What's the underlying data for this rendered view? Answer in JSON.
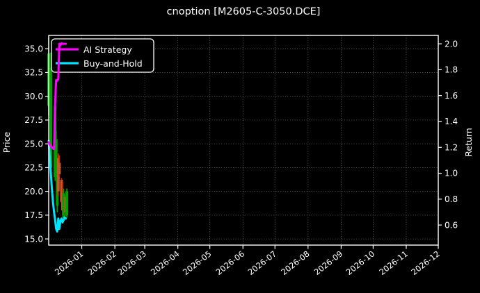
{
  "title": "cnoption [M2605-C-3050.DCE]",
  "legend": {
    "items": [
      {
        "label": "AI Strategy",
        "color": "#ff00ff"
      },
      {
        "label": "Buy-and-Hold",
        "color": "#00e5ff"
      }
    ]
  },
  "axes": {
    "left": {
      "label": "Price",
      "ticks": [
        "35.0",
        "32.5",
        "30.0",
        "27.5",
        "25.0",
        "22.5",
        "20.0",
        "17.5",
        "15.0"
      ]
    },
    "right": {
      "label": "Return",
      "ticks": [
        "2.0",
        "1.8",
        "1.6",
        "1.4",
        "1.2",
        "1.0",
        "0.8",
        "0.6"
      ]
    },
    "x": {
      "ticks": [
        "2026-01",
        "2026-02",
        "2026-03",
        "2026-04",
        "2026-05",
        "2026-06",
        "2026-07",
        "2026-08",
        "2026-09",
        "2026-10",
        "2026-11",
        "2026-12"
      ]
    }
  },
  "chart_data": {
    "type": "line",
    "title": "cnoption [M2605-C-3050.DCE]",
    "x_start_date": "2025-12-01",
    "x_axis_range": [
      "2025-12-01",
      "2026-12-01"
    ],
    "grid": "dotted",
    "legend_position": "upper left",
    "background": "#000000",
    "left_axis": {
      "label": "Price",
      "ylim": [
        14.35,
        36.4
      ],
      "tick_values": [
        35.0,
        32.5,
        30.0,
        27.5,
        25.0,
        22.5,
        20.0,
        17.5,
        15.0
      ]
    },
    "right_axis": {
      "label": "Return",
      "ylim": [
        0.445,
        2.065
      ],
      "tick_values": [
        2.0,
        1.8,
        1.6,
        1.4,
        1.2,
        1.0,
        0.8,
        0.6
      ]
    },
    "series": [
      {
        "name": "AI Strategy",
        "axis": "return",
        "color": "#ff00ff",
        "linewidth": 3,
        "dates": [
          "2025-12-01",
          "2025-12-02",
          "2025-12-03",
          "2025-12-04",
          "2025-12-05",
          "2025-12-06",
          "2025-12-07",
          "2025-12-08",
          "2025-12-09",
          "2025-12-10",
          "2025-12-11",
          "2025-12-12",
          "2025-12-13",
          "2025-12-14",
          "2025-12-15",
          "2025-12-16",
          "2025-12-17"
        ],
        "values": [
          1.24,
          1.22,
          1.21,
          1.2,
          1.19,
          1.185,
          1.53,
          1.72,
          1.715,
          1.73,
          2.0,
          1.99,
          2.005,
          2.0,
          2.0,
          2.0,
          2.0
        ]
      },
      {
        "name": "Buy-and-Hold",
        "axis": "return",
        "color": "#00e5ff",
        "linewidth": 3,
        "dates": [
          "2025-12-01",
          "2025-12-02",
          "2025-12-03",
          "2025-12-04",
          "2025-12-05",
          "2025-12-06",
          "2025-12-07",
          "2025-12-08",
          "2025-12-09",
          "2025-12-10",
          "2025-12-11",
          "2025-12-12",
          "2025-12-13",
          "2025-12-14",
          "2025-12-15",
          "2025-12-16",
          "2025-12-17"
        ],
        "values": [
          1.25,
          1.13,
          1.0,
          0.88,
          0.78,
          0.7,
          0.64,
          0.57,
          0.55,
          0.65,
          0.57,
          0.63,
          0.65,
          0.62,
          0.64,
          0.66,
          0.65
        ]
      }
    ],
    "candles": {
      "axis": "price",
      "up_color": "#00a000",
      "down_color": "#dd2200",
      "down_body_color": "#c4572b",
      "up_body_color": "#00a000",
      "data": [
        {
          "date": "2025-12-01",
          "open": 29.0,
          "high": 36.2,
          "low": 28.0,
          "close": 34.5
        },
        {
          "date": "2025-12-03",
          "open": 22.5,
          "high": 34.6,
          "low": 21.5,
          "close": 33.0
        },
        {
          "date": "2025-12-07",
          "open": 21.5,
          "high": 30.1,
          "low": 21.1,
          "close": 29.0
        },
        {
          "date": "2025-12-08",
          "open": 22.0,
          "high": 26.3,
          "low": 21.5,
          "close": 25.5
        },
        {
          "date": "2025-12-09",
          "open": 18.5,
          "high": 23.5,
          "low": 17.8,
          "close": 22.5
        },
        {
          "date": "2025-12-10",
          "open": 23.5,
          "high": 24.0,
          "low": 19.5,
          "close": 20.0
        },
        {
          "date": "2025-12-11",
          "open": 23.0,
          "high": 23.8,
          "low": 21.5,
          "close": 21.8
        },
        {
          "date": "2025-12-13",
          "open": 21.2,
          "high": 21.4,
          "low": 18.8,
          "close": 18.9
        },
        {
          "date": "2025-12-14",
          "open": 19.0,
          "high": 21.0,
          "low": 17.5,
          "close": 18.0
        },
        {
          "date": "2025-12-15",
          "open": 17.2,
          "high": 20.3,
          "low": 16.9,
          "close": 19.8
        },
        {
          "date": "2025-12-17",
          "open": 19.4,
          "high": 19.6,
          "low": 17.4,
          "close": 17.8
        },
        {
          "date": "2025-12-18",
          "open": 17.5,
          "high": 20.3,
          "low": 17.2,
          "close": 20.0
        }
      ]
    }
  }
}
